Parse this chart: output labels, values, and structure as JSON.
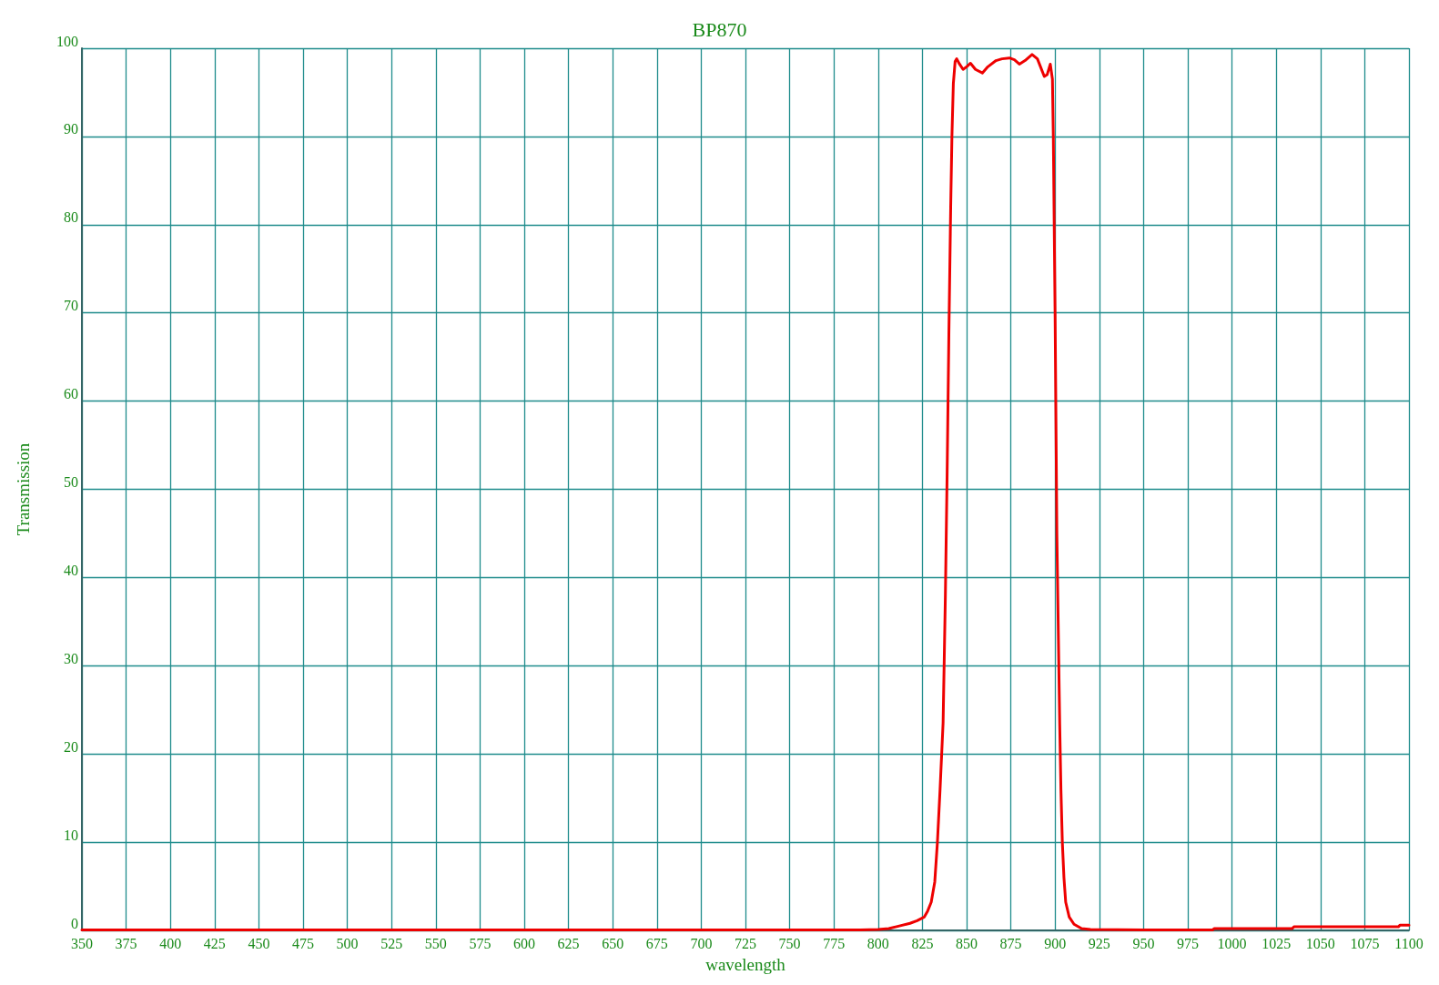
{
  "chart_data": {
    "type": "line",
    "title": "BP870",
    "xlabel": "wavelength",
    "ylabel": "Transmission",
    "series": [
      {
        "color": "#ee0000",
        "x": [
          350,
          500,
          700,
          790,
          800,
          806,
          812,
          818,
          822,
          826,
          828,
          830,
          832,
          833.5,
          835,
          836.7,
          838,
          839,
          840,
          841,
          841.7,
          842.5,
          843.5,
          844.4,
          846,
          848,
          850,
          852.2,
          855,
          858.9,
          862,
          866.6,
          870,
          874.2,
          877,
          879.8,
          883,
          887,
          890,
          893.9,
          895.5,
          897.3,
          898.5,
          899,
          900,
          901,
          902.6,
          903.3,
          904.1,
          905,
          906,
          908,
          910.7,
          915,
          920,
          950,
          989,
          990,
          1034,
          1035,
          1094,
          1095,
          1100
        ],
        "values": [
          0.05,
          0.05,
          0.05,
          0.05,
          0.1,
          0.2,
          0.5,
          0.8,
          1.1,
          1.5,
          2.2,
          3.2,
          5.5,
          10,
          16,
          23.5,
          38,
          52,
          68,
          82,
          90,
          96,
          98.5,
          98.8,
          98.2,
          97.6,
          97.9,
          98.3,
          97.6,
          97.2,
          97.9,
          98.6,
          98.8,
          98.9,
          98.7,
          98.2,
          98.6,
          99.3,
          98.8,
          96.8,
          97,
          98.2,
          96.5,
          90,
          70,
          45,
          23.5,
          16,
          10,
          6,
          3.2,
          1.5,
          0.7,
          0.2,
          0.1,
          0.05,
          0.05,
          0.2,
          0.2,
          0.4,
          0.4,
          0.6,
          0.6
        ]
      }
    ],
    "xlim": [
      350,
      1100
    ],
    "xticks": [
      350,
      375,
      400,
      425,
      450,
      475,
      500,
      525,
      550,
      575,
      600,
      625,
      650,
      675,
      700,
      725,
      750,
      775,
      800,
      825,
      850,
      875,
      900,
      925,
      950,
      975,
      1000,
      1025,
      1050,
      1075,
      1100
    ],
    "ylim": [
      0,
      100
    ],
    "yticks": [
      0,
      10,
      20,
      30,
      40,
      50,
      60,
      70,
      80,
      90,
      100
    ],
    "grid": true,
    "marker": "none",
    "line_style": "solid"
  }
}
